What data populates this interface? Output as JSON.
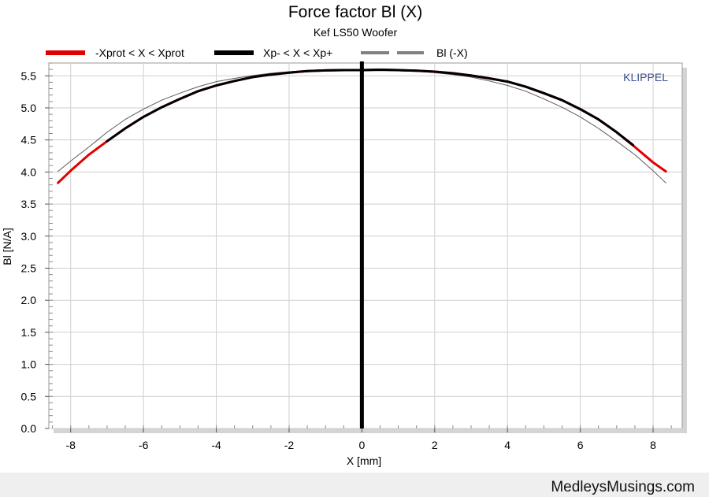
{
  "chart_data": {
    "type": "line",
    "title": "Force factor Bl (X)",
    "subtitle": "Kef LS50 Woofer",
    "xlabel": "X [mm]",
    "ylabel": "Bl [N/A]",
    "watermark": "KLIPPEL",
    "xlim": [
      -8.6,
      8.8
    ],
    "ylim": [
      0,
      5.7
    ],
    "xticks": [
      "-8",
      "-6",
      "-4",
      "-2",
      "0",
      "2",
      "4",
      "6",
      "8"
    ],
    "yticks": [
      "0.0",
      "0.5",
      "1.0",
      "1.5",
      "2.0",
      "2.5",
      "3.0",
      "3.5",
      "4.0",
      "4.5",
      "5.0",
      "5.5"
    ],
    "grid": true,
    "legend_position": "top",
    "legend": [
      {
        "label": "-Xprot < X < Xprot",
        "color": "#e00000",
        "style": "thick"
      },
      {
        "label": "Xp- < X < Xp+",
        "color": "#000000",
        "style": "thick"
      },
      {
        "label": "Bl (-X)",
        "color": "#808080",
        "style": "dashed"
      }
    ],
    "series": [
      {
        "name": "-Xprot < X < Xprot",
        "color": "#e00000",
        "x": [
          -8.35,
          -8.0,
          -7.5,
          -7.0,
          -6.5,
          -6.0,
          -5.5,
          -5.0,
          -4.5,
          -4.0,
          -3.5,
          -3.0,
          -2.5,
          -2.0,
          -1.5,
          -1.0,
          -0.5,
          0.0,
          0.5,
          1.0,
          1.5,
          2.0,
          2.5,
          3.0,
          3.5,
          4.0,
          4.5,
          5.0,
          5.5,
          6.0,
          6.5,
          7.0,
          7.5,
          8.0,
          8.35
        ],
        "y": [
          3.83,
          4.02,
          4.27,
          4.48,
          4.68,
          4.86,
          5.01,
          5.14,
          5.26,
          5.35,
          5.42,
          5.48,
          5.52,
          5.55,
          5.575,
          5.585,
          5.59,
          5.59,
          5.595,
          5.59,
          5.58,
          5.565,
          5.54,
          5.505,
          5.46,
          5.41,
          5.33,
          5.23,
          5.12,
          4.98,
          4.82,
          4.62,
          4.39,
          4.15,
          4.01
        ]
      },
      {
        "name": "Xp- < X < Xp+",
        "color": "#000000",
        "x": [
          -7.0,
          -6.5,
          -6.0,
          -5.5,
          -5.0,
          -4.5,
          -4.0,
          -3.5,
          -3.0,
          -2.5,
          -2.0,
          -1.5,
          -1.0,
          -0.5,
          0.0,
          0.5,
          1.0,
          1.5,
          2.0,
          2.5,
          3.0,
          3.5,
          4.0,
          4.5,
          5.0,
          5.5,
          6.0,
          6.5,
          7.0,
          7.45
        ],
        "y": [
          4.48,
          4.68,
          4.86,
          5.01,
          5.14,
          5.26,
          5.35,
          5.42,
          5.48,
          5.52,
          5.55,
          5.575,
          5.585,
          5.59,
          5.59,
          5.595,
          5.59,
          5.58,
          5.565,
          5.54,
          5.505,
          5.46,
          5.41,
          5.33,
          5.23,
          5.12,
          4.98,
          4.82,
          4.62,
          4.42
        ]
      },
      {
        "name": "Bl (-X)",
        "color": "#808080",
        "x": [
          -8.35,
          -8.0,
          -7.5,
          -7.0,
          -6.5,
          -6.0,
          -5.5,
          -5.0,
          -4.5,
          -4.0,
          -3.5,
          -3.0,
          -2.5,
          -2.0,
          -1.5,
          -1.0,
          -0.5,
          0.0,
          0.5,
          1.0,
          1.5,
          2.0,
          2.5,
          3.0,
          3.5,
          4.0,
          4.5,
          5.0,
          5.5,
          6.0,
          6.5,
          7.0,
          7.5,
          8.0,
          8.35
        ],
        "y": [
          4.01,
          4.17,
          4.39,
          4.62,
          4.82,
          4.98,
          5.12,
          5.23,
          5.33,
          5.41,
          5.46,
          5.505,
          5.54,
          5.565,
          5.58,
          5.59,
          5.595,
          5.59,
          5.59,
          5.585,
          5.575,
          5.55,
          5.52,
          5.48,
          5.42,
          5.35,
          5.26,
          5.14,
          5.01,
          4.86,
          4.68,
          4.48,
          4.27,
          4.02,
          3.83
        ]
      }
    ],
    "vertical_marker": {
      "x": 0,
      "color": "#000000"
    }
  },
  "footer": {
    "site": "MedleysMusings.com"
  }
}
